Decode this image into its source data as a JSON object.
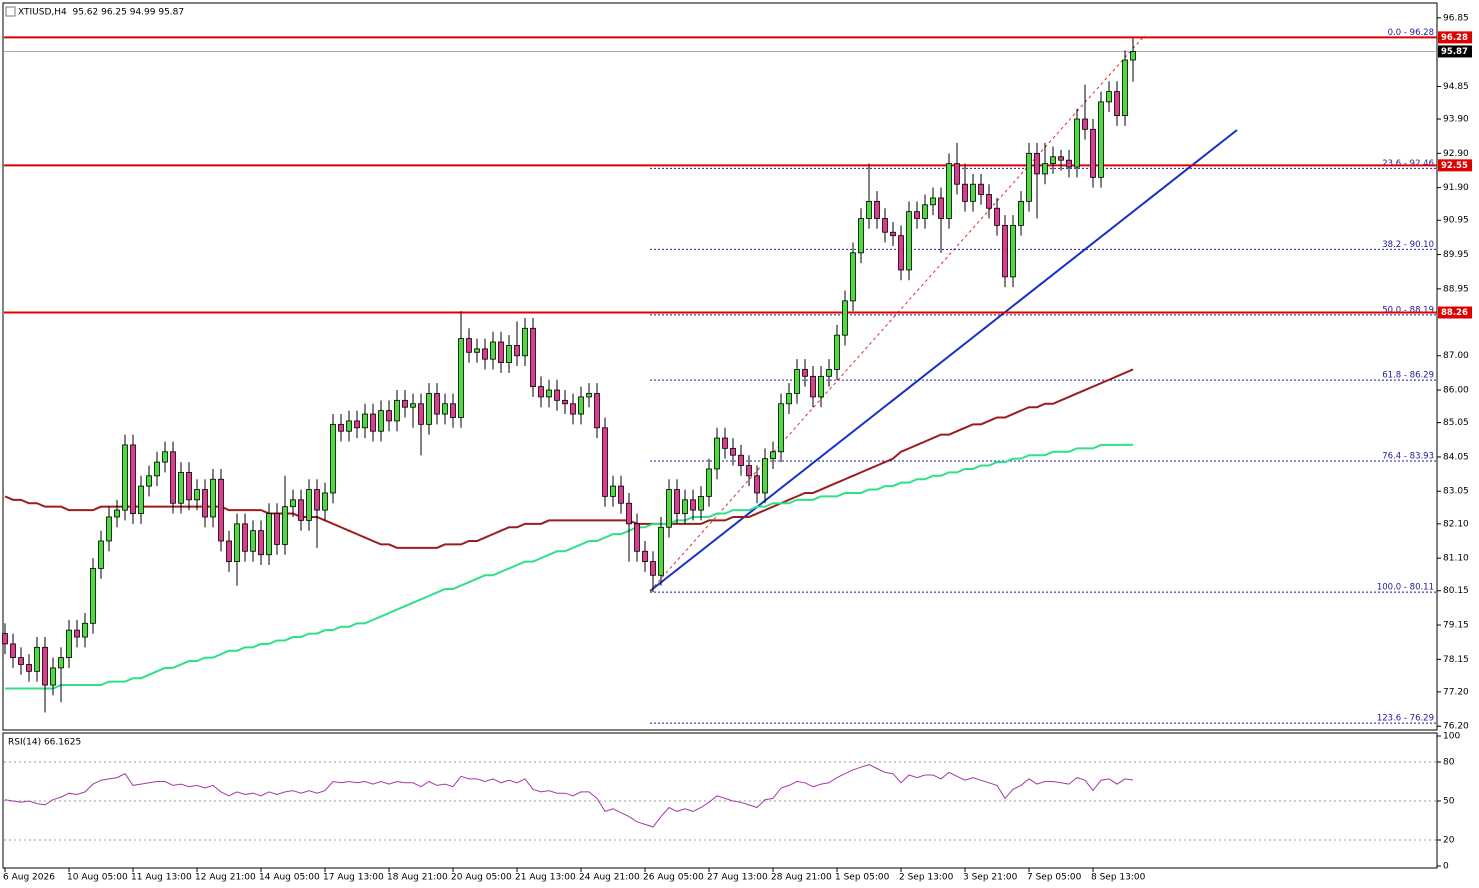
{
  "chart_data": [
    {
      "type": "candlestick",
      "title": "XTIUSD,H4  95.62 96.25 94.99 95.87",
      "categories": [
        "6 Aug 2026",
        null,
        null,
        null,
        null,
        null,
        null,
        null,
        "10 Aug 05:00",
        null,
        null,
        null,
        null,
        null,
        null,
        null,
        "11 Aug 13:00",
        null,
        null,
        null,
        null,
        null,
        null,
        null,
        "12 Aug 21:00",
        null,
        null,
        null,
        null,
        null,
        null,
        null,
        "14 Aug 05:00",
        null,
        null,
        null,
        null,
        null,
        null,
        null,
        "17 Aug 13:00",
        null,
        null,
        null,
        null,
        null,
        null,
        null,
        "18 Aug 21:00",
        null,
        null,
        null,
        null,
        null,
        null,
        null,
        "20 Aug 05:00",
        null,
        null,
        null,
        null,
        null,
        null,
        null,
        "21 Aug 13:00",
        null,
        null,
        null,
        null,
        null,
        null,
        null,
        "24 Aug 21:00",
        null,
        null,
        null,
        null,
        null,
        null,
        null,
        "26 Aug 05:00",
        null,
        null,
        null,
        null,
        null,
        null,
        null,
        "27 Aug 13:00",
        null,
        null,
        null,
        null,
        null,
        null,
        null,
        "28 Aug 21:00",
        null,
        null,
        null,
        null,
        null,
        null,
        null,
        "1 Sep 05:00",
        null,
        null,
        null,
        null,
        null,
        null,
        null,
        "2 Sep 13:00",
        null,
        null,
        null,
        null,
        null,
        null,
        null,
        "3 Sep 21:00",
        null,
        null,
        null,
        null,
        null,
        null,
        null,
        "7 Sep 05:00",
        null,
        null,
        null,
        null,
        null,
        null,
        null,
        "8 Sep 13:00",
        null,
        null,
        null,
        null,
        null
      ],
      "open": [
        78.9,
        78.6,
        78.2,
        78.0,
        77.8,
        78.5,
        77.4,
        77.9,
        78.2,
        79.0,
        78.8,
        79.2,
        80.8,
        81.6,
        82.3,
        82.5,
        84.4,
        82.4,
        83.2,
        83.5,
        83.9,
        84.2,
        82.7,
        83.6,
        82.8,
        83.1,
        82.3,
        83.4,
        81.6,
        81.0,
        82.1,
        81.3,
        81.9,
        81.2,
        82.4,
        81.5,
        82.6,
        82.8,
        82.2,
        83.1,
        82.5,
        83.0,
        85.0,
        84.8,
        85.1,
        84.9,
        85.3,
        84.8,
        85.4,
        85.1,
        85.7,
        85.5,
        85.6,
        85.0,
        85.9,
        85.3,
        85.6,
        85.2,
        87.5,
        87.1,
        87.2,
        86.9,
        87.4,
        86.8,
        87.3,
        87.0,
        87.8,
        86.1,
        85.8,
        86.0,
        85.7,
        85.6,
        85.3,
        85.8,
        85.9,
        84.9,
        82.9,
        83.2,
        82.7,
        82.1,
        81.3,
        81.0,
        80.6,
        82.0,
        83.1,
        82.4,
        82.8,
        82.5,
        82.9,
        83.7,
        84.6,
        84.3,
        84.1,
        83.8,
        83.5,
        83.0,
        84.0,
        84.2,
        85.6,
        85.9,
        86.6,
        86.4,
        85.8,
        86.4,
        86.6,
        87.6,
        88.6,
        90.0,
        91.0,
        91.5,
        91.0,
        90.6,
        90.5,
        89.5,
        91.2,
        91.0,
        91.4,
        91.6,
        91.0,
        92.6,
        92.0,
        91.5,
        92.0,
        91.7,
        91.3,
        90.8,
        89.3,
        90.8,
        91.5,
        92.9,
        92.3,
        92.6,
        92.8,
        92.7,
        92.5,
        93.9,
        93.6,
        92.2,
        94.4,
        94.7,
        94.0,
        95.62
      ],
      "high": [
        79.2,
        78.9,
        78.5,
        78.3,
        78.8,
        78.8,
        78.2,
        78.5,
        79.3,
        79.3,
        79.5,
        81.1,
        81.9,
        82.6,
        82.8,
        84.7,
        84.7,
        83.5,
        83.8,
        84.2,
        84.5,
        84.5,
        83.9,
        83.9,
        83.4,
        83.4,
        83.7,
        83.7,
        81.9,
        82.4,
        82.4,
        82.2,
        82.2,
        82.7,
        82.7,
        83.5,
        83.1,
        83.1,
        83.4,
        83.4,
        83.3,
        85.3,
        85.3,
        85.4,
        85.4,
        85.6,
        85.6,
        85.7,
        85.7,
        86.0,
        86.0,
        85.9,
        85.9,
        86.2,
        86.2,
        85.9,
        85.9,
        88.3,
        87.8,
        87.5,
        87.5,
        87.7,
        87.7,
        87.6,
        88.0,
        88.1,
        88.1,
        86.4,
        86.3,
        86.3,
        86.0,
        85.9,
        86.1,
        86.2,
        86.2,
        85.2,
        83.5,
        83.5,
        83.0,
        82.4,
        81.6,
        81.3,
        82.3,
        83.4,
        83.4,
        83.1,
        83.1,
        83.2,
        84.0,
        84.9,
        84.9,
        84.6,
        84.4,
        84.1,
        83.8,
        84.3,
        84.5,
        85.9,
        86.2,
        86.9,
        86.9,
        86.7,
        86.7,
        86.9,
        87.9,
        88.9,
        90.3,
        91.3,
        92.6,
        91.8,
        91.3,
        90.9,
        90.8,
        91.5,
        91.5,
        91.7,
        91.9,
        91.9,
        92.9,
        93.2,
        92.6,
        92.3,
        92.3,
        92.0,
        91.6,
        91.1,
        91.1,
        91.8,
        93.2,
        93.2,
        93.2,
        93.1,
        93.0,
        93.0,
        94.2,
        94.9,
        93.9,
        94.7,
        95.0,
        95.0,
        95.9,
        96.25
      ],
      "low": [
        78.3,
        77.9,
        77.7,
        77.5,
        77.5,
        76.6,
        77.1,
        76.9,
        77.9,
        78.5,
        78.5,
        78.9,
        80.5,
        81.3,
        82.0,
        82.2,
        82.1,
        82.1,
        82.9,
        83.2,
        83.6,
        82.4,
        82.4,
        82.5,
        82.5,
        82.0,
        82.0,
        81.3,
        80.7,
        80.3,
        81.0,
        81.0,
        80.9,
        80.9,
        81.2,
        81.2,
        82.3,
        81.9,
        81.9,
        81.4,
        82.2,
        82.7,
        84.5,
        84.5,
        84.6,
        84.6,
        84.5,
        84.5,
        84.8,
        84.8,
        85.2,
        84.9,
        84.1,
        84.7,
        85.0,
        85.0,
        84.9,
        84.9,
        86.8,
        86.8,
        86.6,
        86.6,
        86.5,
        86.5,
        86.7,
        86.7,
        85.8,
        85.5,
        85.5,
        85.4,
        85.3,
        85.0,
        85.0,
        85.5,
        84.6,
        82.6,
        82.6,
        82.4,
        81.0,
        81.0,
        80.7,
        80.11,
        80.3,
        81.7,
        82.1,
        82.1,
        82.2,
        82.2,
        82.6,
        83.4,
        84.0,
        83.8,
        83.5,
        83.2,
        82.7,
        82.7,
        83.7,
        83.9,
        85.3,
        85.6,
        86.1,
        85.5,
        85.5,
        86.1,
        86.3,
        87.3,
        88.3,
        89.7,
        90.7,
        90.7,
        90.3,
        90.2,
        89.2,
        89.2,
        90.7,
        90.7,
        91.1,
        90.0,
        90.7,
        91.7,
        91.2,
        91.2,
        91.4,
        91.0,
        90.5,
        89.0,
        89.0,
        90.5,
        91.2,
        91.0,
        92.0,
        92.3,
        92.4,
        92.2,
        92.2,
        93.3,
        91.9,
        91.9,
        94.1,
        93.7,
        93.7,
        94.99
      ],
      "close": [
        78.6,
        78.2,
        78.0,
        77.8,
        78.5,
        77.4,
        77.9,
        78.2,
        79.0,
        78.8,
        79.2,
        80.8,
        81.6,
        82.3,
        82.5,
        84.4,
        82.4,
        83.2,
        83.5,
        83.9,
        84.2,
        82.7,
        83.6,
        82.8,
        83.1,
        82.3,
        83.4,
        81.6,
        81.0,
        82.1,
        81.3,
        81.9,
        81.2,
        82.4,
        81.5,
        82.6,
        82.8,
        82.2,
        83.1,
        82.5,
        83.0,
        85.0,
        84.8,
        85.1,
        84.9,
        85.3,
        84.8,
        85.4,
        85.1,
        85.7,
        85.5,
        85.6,
        85.0,
        85.9,
        85.3,
        85.6,
        85.2,
        87.5,
        87.1,
        87.2,
        86.9,
        87.4,
        86.8,
        87.3,
        87.0,
        87.8,
        86.1,
        85.8,
        86.0,
        85.7,
        85.6,
        85.3,
        85.8,
        85.9,
        84.9,
        82.9,
        83.2,
        82.7,
        82.1,
        81.3,
        81.0,
        80.6,
        82.0,
        83.1,
        82.4,
        82.8,
        82.5,
        82.9,
        83.7,
        84.6,
        84.3,
        84.1,
        83.8,
        83.5,
        83.0,
        84.0,
        84.2,
        85.6,
        85.9,
        86.6,
        86.4,
        85.8,
        86.4,
        86.6,
        87.6,
        88.6,
        90.0,
        91.0,
        91.5,
        91.0,
        90.6,
        90.5,
        89.5,
        91.2,
        91.0,
        91.4,
        91.6,
        91.0,
        92.6,
        92.0,
        91.5,
        92.0,
        91.7,
        91.3,
        90.8,
        89.3,
        90.8,
        91.5,
        92.9,
        92.3,
        92.6,
        92.8,
        92.7,
        92.5,
        93.9,
        93.6,
        92.2,
        94.4,
        94.7,
        94.0,
        95.62,
        95.87
      ],
      "up_color": "#4ddc3c",
      "down_color": "#dc3c8c",
      "series": [
        {
          "color": "#9b1c1c",
          "values": [
            82.9,
            82.8,
            82.8,
            82.7,
            82.7,
            82.6,
            82.6,
            82.6,
            82.5,
            82.5,
            82.5,
            82.5,
            82.6,
            82.6,
            82.6,
            82.6,
            82.6,
            82.6,
            82.6,
            82.6,
            82.6,
            82.6,
            82.6,
            82.6,
            82.6,
            82.6,
            82.6,
            82.6,
            82.5,
            82.5,
            82.5,
            82.5,
            82.5,
            82.4,
            82.4,
            82.4,
            82.4,
            82.3,
            82.3,
            82.3,
            82.2,
            82.1,
            82.0,
            81.9,
            81.8,
            81.7,
            81.6,
            81.5,
            81.5,
            81.4,
            81.4,
            81.4,
            81.4,
            81.4,
            81.4,
            81.5,
            81.5,
            81.5,
            81.6,
            81.6,
            81.7,
            81.8,
            81.9,
            82.0,
            82.0,
            82.1,
            82.1,
            82.1,
            82.2,
            82.2,
            82.2,
            82.2,
            82.2,
            82.2,
            82.2,
            82.2,
            82.2,
            82.2,
            82.2,
            82.1,
            82.1,
            82.1,
            82.1,
            82.1,
            82.1,
            82.1,
            82.1,
            82.1,
            82.2,
            82.2,
            82.2,
            82.3,
            82.3,
            82.3,
            82.4,
            82.5,
            82.6,
            82.7,
            82.8,
            82.9,
            83.0,
            83.0,
            83.1,
            83.2,
            83.3,
            83.4,
            83.5,
            83.6,
            83.7,
            83.8,
            83.9,
            84.0,
            84.2,
            84.3,
            84.4,
            84.5,
            84.6,
            84.7,
            84.7,
            84.8,
            84.9,
            85.0,
            85.0,
            85.1,
            85.2,
            85.2,
            85.3,
            85.4,
            85.5,
            85.5,
            85.6,
            85.6,
            85.7,
            85.8,
            85.9,
            86.0,
            86.1,
            86.2,
            86.3,
            86.4,
            86.5,
            86.6
          ]
        },
        {
          "color": "#2ee08a",
          "values": [
            77.3,
            77.3,
            77.3,
            77.3,
            77.3,
            77.3,
            77.3,
            77.4,
            77.4,
            77.4,
            77.4,
            77.4,
            77.4,
            77.5,
            77.5,
            77.5,
            77.6,
            77.6,
            77.7,
            77.8,
            77.9,
            77.9,
            78.0,
            78.1,
            78.1,
            78.2,
            78.2,
            78.3,
            78.4,
            78.4,
            78.5,
            78.5,
            78.6,
            78.6,
            78.7,
            78.7,
            78.8,
            78.8,
            78.9,
            78.9,
            79.0,
            79.0,
            79.1,
            79.1,
            79.2,
            79.2,
            79.3,
            79.4,
            79.5,
            79.6,
            79.7,
            79.8,
            79.9,
            80.0,
            80.1,
            80.2,
            80.2,
            80.3,
            80.4,
            80.5,
            80.6,
            80.6,
            80.7,
            80.8,
            80.9,
            81.0,
            81.0,
            81.1,
            81.2,
            81.3,
            81.3,
            81.4,
            81.5,
            81.6,
            81.6,
            81.7,
            81.8,
            81.8,
            81.9,
            82.0,
            82.0,
            82.1,
            82.1,
            82.1,
            82.2,
            82.2,
            82.3,
            82.3,
            82.3,
            82.4,
            82.4,
            82.5,
            82.5,
            82.5,
            82.6,
            82.6,
            82.7,
            82.7,
            82.7,
            82.8,
            82.8,
            82.8,
            82.9,
            82.9,
            82.9,
            83.0,
            83.0,
            83.0,
            83.1,
            83.1,
            83.2,
            83.2,
            83.3,
            83.3,
            83.4,
            83.4,
            83.5,
            83.5,
            83.6,
            83.6,
            83.7,
            83.7,
            83.8,
            83.8,
            83.9,
            83.9,
            84.0,
            84.0,
            84.1,
            84.1,
            84.1,
            84.2,
            84.2,
            84.2,
            84.3,
            84.3,
            84.3,
            84.4,
            84.4,
            84.4,
            84.4,
            84.4
          ]
        }
      ],
      "ylim": [
        76.09,
        97.37
      ],
      "yticks": [
        96.85,
        94.85,
        {
          "value": 93.9,
          "label": "93.90"
        },
        {
          "value": 92.9,
          "label": "92.90"
        },
        {
          "value": 91.9,
          "label": "91.90"
        },
        90.95,
        89.95,
        88.95,
        {
          "value": 87,
          "label": "87.00"
        },
        {
          "value": 86,
          "label": "86.00"
        },
        85.05,
        84.05,
        83.05,
        {
          "value": 82.1,
          "label": "82.10"
        },
        {
          "value": 81.1,
          "label": "81.10"
        },
        80.15,
        79.15,
        78.15,
        {
          "value": 77.2,
          "label": "77.20"
        },
        {
          "value": 76.2,
          "label": "76.20"
        }
      ],
      "levels": [
        {
          "label": "0.0 - 96.28",
          "value": 96.28
        },
        {
          "label": "23.6 - 92.46",
          "value": 92.46
        },
        {
          "label": "38.2 - 90.10",
          "value": 90.1
        },
        {
          "label": "50.0 - 88.19",
          "value": 88.19
        },
        {
          "label": "61.8 - 86.29",
          "value": 86.29
        },
        {
          "label": "76.4 - 83.93",
          "value": 83.93
        },
        {
          "label": "100.0 - 80.11",
          "value": 80.11
        },
        {
          "label": "123.6 - 76.29",
          "value": 76.29
        }
      ],
      "level_color": "#1a1a9a",
      "horizontal_lines": [
        96.28,
        92.55,
        88.26
      ],
      "hline_color": "#e00000",
      "last_price": 95.87
    },
    {
      "type": "line",
      "title": "RSI(14) 66.1625",
      "color": "#a23aa8",
      "values": [
        51,
        50,
        49,
        50,
        48,
        47,
        51,
        53,
        56,
        55,
        57,
        63,
        66,
        67,
        68,
        71,
        62,
        63,
        64,
        65,
        65,
        62,
        63,
        61,
        62,
        60,
        62,
        57,
        54,
        57,
        55,
        56,
        54,
        57,
        55,
        57,
        58,
        56,
        58,
        56,
        58,
        65,
        64,
        65,
        64,
        65,
        63,
        65,
        63,
        65,
        64,
        64,
        61,
        65,
        62,
        63,
        61,
        69,
        67,
        67,
        65,
        67,
        64,
        66,
        64,
        67,
        59,
        57,
        58,
        56,
        56,
        54,
        57,
        57,
        52,
        42,
        44,
        41,
        38,
        34,
        32,
        30,
        38,
        45,
        42,
        44,
        42,
        45,
        49,
        54,
        52,
        50,
        49,
        47,
        45,
        51,
        52,
        60,
        62,
        65,
        64,
        61,
        63,
        64,
        68,
        71,
        74,
        76,
        78,
        75,
        72,
        71,
        64,
        70,
        68,
        70,
        70,
        67,
        72,
        69,
        66,
        68,
        66,
        64,
        62,
        52,
        59,
        62,
        67,
        63,
        65,
        65,
        64,
        63,
        68,
        66,
        58,
        66,
        67,
        63,
        67,
        66.1625
      ],
      "ylim": [
        0,
        100
      ],
      "yticks": [
        100,
        80,
        50,
        20,
        0
      ]
    }
  ]
}
